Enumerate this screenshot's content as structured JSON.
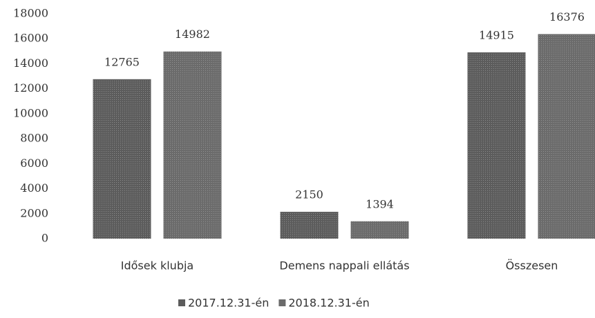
{
  "chart_data": {
    "type": "bar",
    "categories": [
      "Idősek klubja",
      "Demens nappali ellátás",
      "Összesen"
    ],
    "series": [
      {
        "name": "2017.12.31-én",
        "color": "#5c5c5c",
        "values": [
          12765,
          2150,
          14915
        ]
      },
      {
        "name": "2018.12.31-én",
        "color": "#6b6b6b",
        "values": [
          14982,
          1394,
          16376
        ]
      }
    ],
    "ylim": [
      0,
      18000
    ],
    "yticks": [
      0,
      2000,
      4000,
      6000,
      8000,
      10000,
      12000,
      14000,
      16000,
      18000
    ],
    "grid": false,
    "legend": "bottom"
  }
}
